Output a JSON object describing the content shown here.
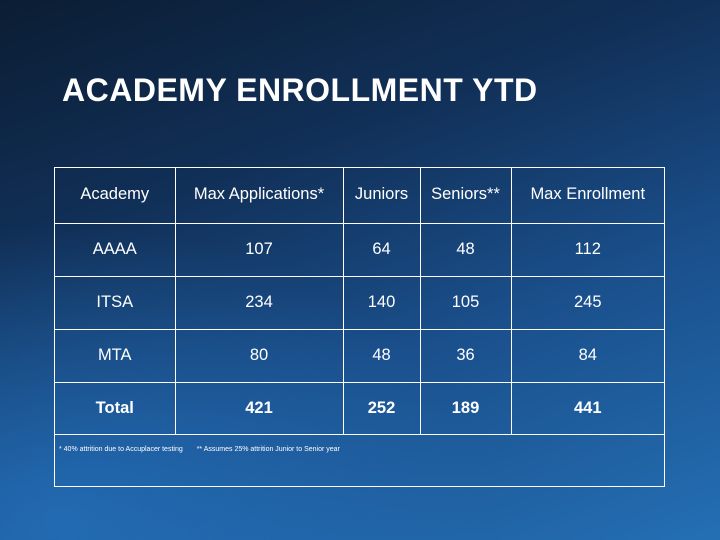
{
  "title": "ACADEMY ENROLLMENT YTD",
  "table": {
    "headers": [
      "Academy",
      "Max Applications*",
      "Juniors",
      "Seniors**",
      "Max Enrollment"
    ],
    "rows": [
      [
        "AAAA",
        "107",
        "64",
        "48",
        "112"
      ],
      [
        "ITSA",
        "234",
        "140",
        "105",
        "245"
      ],
      [
        "MTA",
        "80",
        "48",
        "36",
        "84"
      ]
    ],
    "total": [
      "Total",
      "421",
      "252",
      "189",
      "441"
    ]
  },
  "footnotes": [
    "* 40% attrition due to Accuplacer testing",
    "** Assumes 25% attrition Junior to Senior year"
  ],
  "colors": {
    "background_dark": "#0b1d33",
    "background_light": "#246fb4",
    "text": "#ffffff"
  }
}
